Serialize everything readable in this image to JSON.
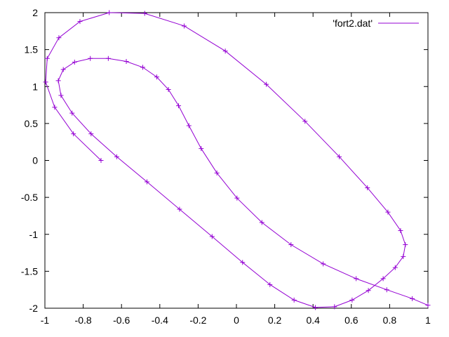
{
  "chart_data": {
    "type": "line",
    "title": "",
    "xlabel": "",
    "ylabel": "",
    "xlim": [
      -1,
      1
    ],
    "ylim": [
      -2,
      2
    ],
    "xticks": [
      -1,
      -0.8,
      -0.6,
      -0.4,
      -0.2,
      0,
      0.2,
      0.4,
      0.6,
      0.8,
      1
    ],
    "xtick_labels": [
      "-1",
      "-0.8",
      "-0.6",
      "-0.4",
      "-0.2",
      "0",
      "0.2",
      "0.4",
      "0.6",
      "0.8",
      "1"
    ],
    "yticks": [
      -2,
      -1.5,
      -1,
      -0.5,
      0,
      0.5,
      1,
      1.5,
      2
    ],
    "ytick_labels": [
      "-2",
      "-1.5",
      "-1",
      "-0.5",
      "0",
      "0.5",
      "1",
      "1.5",
      "2"
    ],
    "grid": false,
    "legend_position": "top-right",
    "series": [
      {
        "name": "'fort2.dat'",
        "color": "#9400d3",
        "marker": "plus",
        "x": [
          -0.707,
          -0.851,
          -0.949,
          -0.996,
          -0.988,
          -0.927,
          -0.817,
          -0.664,
          -0.479,
          -0.273,
          -0.058,
          0.156,
          0.358,
          0.537,
          0.684,
          0.791,
          0.857,
          0.882,
          0.871,
          0.829,
          0.766,
          0.689,
          0.604,
          0.512,
          0.412,
          0.301,
          0.175,
          0.032,
          -0.127,
          -0.297,
          -0.467,
          -0.625,
          -0.759,
          -0.858,
          -0.916,
          -0.93,
          -0.904,
          -0.845,
          -0.763,
          -0.669,
          -0.575,
          -0.489,
          -0.416,
          -0.355,
          -0.302,
          -0.248,
          -0.184,
          -0.102,
          0.003,
          0.133,
          0.285,
          0.453,
          0.625,
          0.785,
          0.918,
          1.0
        ],
        "y": [
          0.0,
          0.36,
          0.72,
          1.06,
          1.38,
          1.66,
          1.88,
          2.0,
          1.99,
          1.82,
          1.48,
          1.03,
          0.53,
          0.05,
          -0.37,
          -0.7,
          -0.95,
          -1.14,
          -1.3,
          -1.45,
          -1.6,
          -1.76,
          -1.89,
          -1.98,
          -1.99,
          -1.89,
          -1.68,
          -1.38,
          -1.03,
          -0.66,
          -0.29,
          0.05,
          0.36,
          0.64,
          0.88,
          1.08,
          1.23,
          1.33,
          1.38,
          1.38,
          1.34,
          1.26,
          1.13,
          0.96,
          0.74,
          0.47,
          0.16,
          -0.17,
          -0.51,
          -0.84,
          -1.14,
          -1.4,
          -1.6,
          -1.75,
          -1.87,
          -1.96
        ]
      }
    ]
  }
}
